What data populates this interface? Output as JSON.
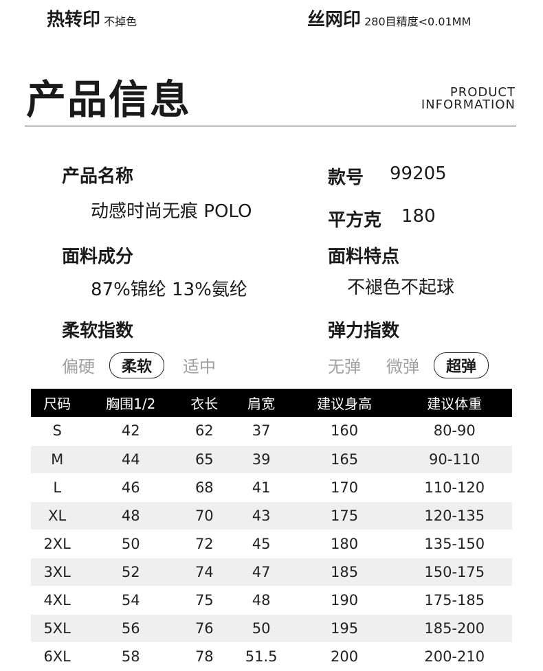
{
  "top": {
    "left_title": "热转印",
    "left_sub": "不掉色",
    "right_title": "丝网印",
    "right_sub": "280目精度<0.01MM"
  },
  "header": {
    "title": "产品信息",
    "en_line1": "PRODUCT",
    "en_line2": "INFORMATION"
  },
  "info": {
    "name_label": "产品名称",
    "name_value": "动感时尚无痕 POLO",
    "style_label": "款号",
    "style_value": "99205",
    "gsm_label": "平方克",
    "gsm_value": "180",
    "fabric_label": "面料成分",
    "fabric_value": "87%锦纶 13%氨纶",
    "feature_label": "面料特点",
    "feature_value": "不褪色不起球",
    "soft_label": "柔软指数",
    "soft_options": [
      "偏硬",
      "柔软",
      "适中"
    ],
    "soft_selected": "柔软",
    "stretch_label": "弹力指数",
    "stretch_options": [
      "无弹",
      "微弹",
      "超弹"
    ],
    "stretch_selected": "超弹"
  },
  "size_table": {
    "headers": [
      "尺码",
      "胸围1/2",
      "衣长",
      "肩宽",
      "建议身高",
      "建议体重"
    ],
    "rows": [
      [
        "S",
        "42",
        "62",
        "37",
        "160",
        "80-90"
      ],
      [
        "M",
        "44",
        "65",
        "39",
        "165",
        "90-110"
      ],
      [
        "L",
        "46",
        "68",
        "41",
        "170",
        "110-120"
      ],
      [
        "XL",
        "48",
        "70",
        "43",
        "175",
        "120-135"
      ],
      [
        "2XL",
        "50",
        "72",
        "45",
        "180",
        "135-150"
      ],
      [
        "3XL",
        "52",
        "74",
        "47",
        "185",
        "150-175"
      ],
      [
        "4XL",
        "54",
        "75",
        "48",
        "190",
        "175-185"
      ],
      [
        "5XL",
        "56",
        "76",
        "50",
        "195",
        "185-200"
      ],
      [
        "6XL",
        "58",
        "78",
        "51.5",
        "200",
        "200-210"
      ]
    ]
  }
}
